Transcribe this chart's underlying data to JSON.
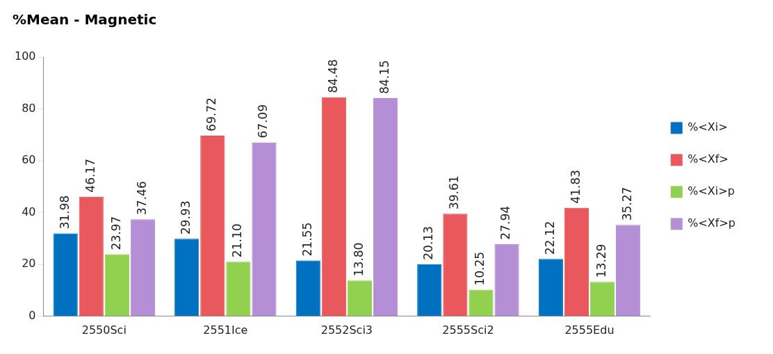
{
  "chart_data": {
    "type": "bar",
    "title": "%Mean - Magnetic",
    "categories": [
      "2550Sci",
      "2551Ice",
      "2552Sci3",
      "2555Sci2",
      "2555Edu"
    ],
    "series": [
      {
        "name": "%<Xi>",
        "color": "#0070c0",
        "values": [
          31.98,
          29.93,
          21.55,
          20.13,
          22.12
        ],
        "value_labels": [
          "31.98",
          "29.93",
          "21.55",
          "20.13",
          "22.12"
        ]
      },
      {
        "name": "%<Xf>",
        "color": "#e8585c",
        "values": [
          46.17,
          69.72,
          84.48,
          39.61,
          41.83
        ],
        "value_labels": [
          "46.17",
          "69.72",
          "84.48",
          "39.61",
          "41.83"
        ]
      },
      {
        "name": "%<Xi>p",
        "color": "#92d050",
        "values": [
          23.97,
          21.1,
          13.8,
          10.25,
          13.29
        ],
        "value_labels": [
          "23.97",
          "21.10",
          "13.80",
          "10.25",
          "13.29"
        ]
      },
      {
        "name": "%<Xf>p",
        "color": "#b48fd6",
        "values": [
          37.46,
          67.09,
          84.15,
          27.94,
          35.27
        ],
        "value_labels": [
          "37.46",
          "67.09",
          "84.15",
          "27.94",
          "35.27"
        ]
      }
    ],
    "ylim": [
      0,
      100
    ],
    "yticks": [
      0,
      20,
      40,
      60,
      80,
      100
    ],
    "grid": false,
    "legend": "right"
  }
}
